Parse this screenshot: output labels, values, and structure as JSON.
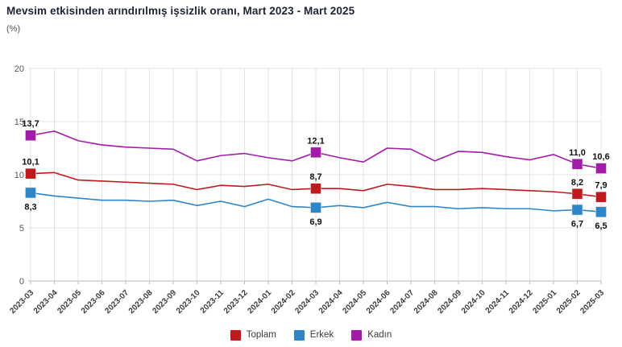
{
  "title": "Mevsim etkisinden arındırılmış işsizlik oranı, Mart 2023 - Mart 2025",
  "unit_label": "(%)",
  "colors": {
    "toplam": "#C0191E",
    "erkek": "#2E86C8",
    "kadin": "#A21CA8",
    "grid": "#e3e3e3",
    "axis": "#b9b9b9",
    "tick_text": "#555555",
    "x_tick_text": "#3d3d3d",
    "data_label_text": "#111111"
  },
  "chart_data": {
    "type": "line",
    "title": "Mevsim etkisinden arındırılmış işsizlik oranı, Mart 2023 - Mart 2025",
    "ylabel": "(%)",
    "ylim": [
      0,
      20
    ],
    "yticks": [
      0,
      5,
      10,
      15,
      20
    ],
    "grid": true,
    "legend_position": "bottom",
    "categories": [
      "2023-03",
      "2023-04",
      "2023-05",
      "2023-06",
      "2023-07",
      "2023-08",
      "2023-09",
      "2023-10",
      "2023-11",
      "2023-12",
      "2024-01",
      "2024-02",
      "2024-03",
      "2024-04",
      "2024-05",
      "2024-06",
      "2024-07",
      "2024-08",
      "2024-09",
      "2024-10",
      "2024-11",
      "2024-12",
      "2025-01",
      "2025-02",
      "2025-03"
    ],
    "series": [
      {
        "name": "Toplam",
        "color": "#C0191E",
        "values": [
          10.1,
          10.2,
          9.5,
          9.4,
          9.3,
          9.2,
          9.1,
          8.6,
          9.0,
          8.9,
          9.1,
          8.6,
          8.7,
          8.7,
          8.5,
          9.1,
          8.9,
          8.6,
          8.6,
          8.7,
          8.6,
          8.5,
          8.4,
          8.2,
          7.9
        ],
        "point_labels": [
          {
            "index": 0,
            "text": "10,1",
            "position": "above"
          },
          {
            "index": 12,
            "text": "8,7",
            "position": "above"
          },
          {
            "index": 23,
            "text": "8,2",
            "position": "above"
          },
          {
            "index": 24,
            "text": "7,9",
            "position": "above"
          }
        ]
      },
      {
        "name": "Erkek",
        "color": "#2E86C8",
        "values": [
          8.3,
          8.0,
          7.8,
          7.6,
          7.6,
          7.5,
          7.6,
          7.1,
          7.5,
          7.0,
          7.7,
          7.0,
          6.9,
          7.1,
          6.9,
          7.4,
          7.0,
          7.0,
          6.8,
          6.9,
          6.8,
          6.8,
          6.6,
          6.7,
          6.5
        ],
        "point_labels": [
          {
            "index": 0,
            "text": "8,3",
            "position": "below"
          },
          {
            "index": 12,
            "text": "6,9",
            "position": "below"
          },
          {
            "index": 23,
            "text": "6,7",
            "position": "below"
          },
          {
            "index": 24,
            "text": "6,5",
            "position": "below"
          }
        ]
      },
      {
        "name": "Kadın",
        "color": "#A21CA8",
        "values": [
          13.7,
          14.1,
          13.2,
          12.8,
          12.6,
          12.5,
          12.4,
          11.3,
          11.8,
          12.0,
          11.6,
          11.3,
          12.1,
          11.6,
          11.2,
          12.5,
          12.4,
          11.3,
          12.2,
          12.1,
          11.7,
          11.4,
          11.9,
          11.0,
          10.6
        ],
        "point_labels": [
          {
            "index": 0,
            "text": "13,7",
            "position": "above"
          },
          {
            "index": 12,
            "text": "12,1",
            "position": "above"
          },
          {
            "index": 23,
            "text": "11,0",
            "position": "above"
          },
          {
            "index": 24,
            "text": "10,6",
            "position": "above"
          }
        ]
      }
    ]
  },
  "legend": {
    "items": [
      {
        "label": "Toplam",
        "color": "#C0191E"
      },
      {
        "label": "Erkek",
        "color": "#2E86C8"
      },
      {
        "label": "Kadın",
        "color": "#A21CA8"
      }
    ]
  }
}
